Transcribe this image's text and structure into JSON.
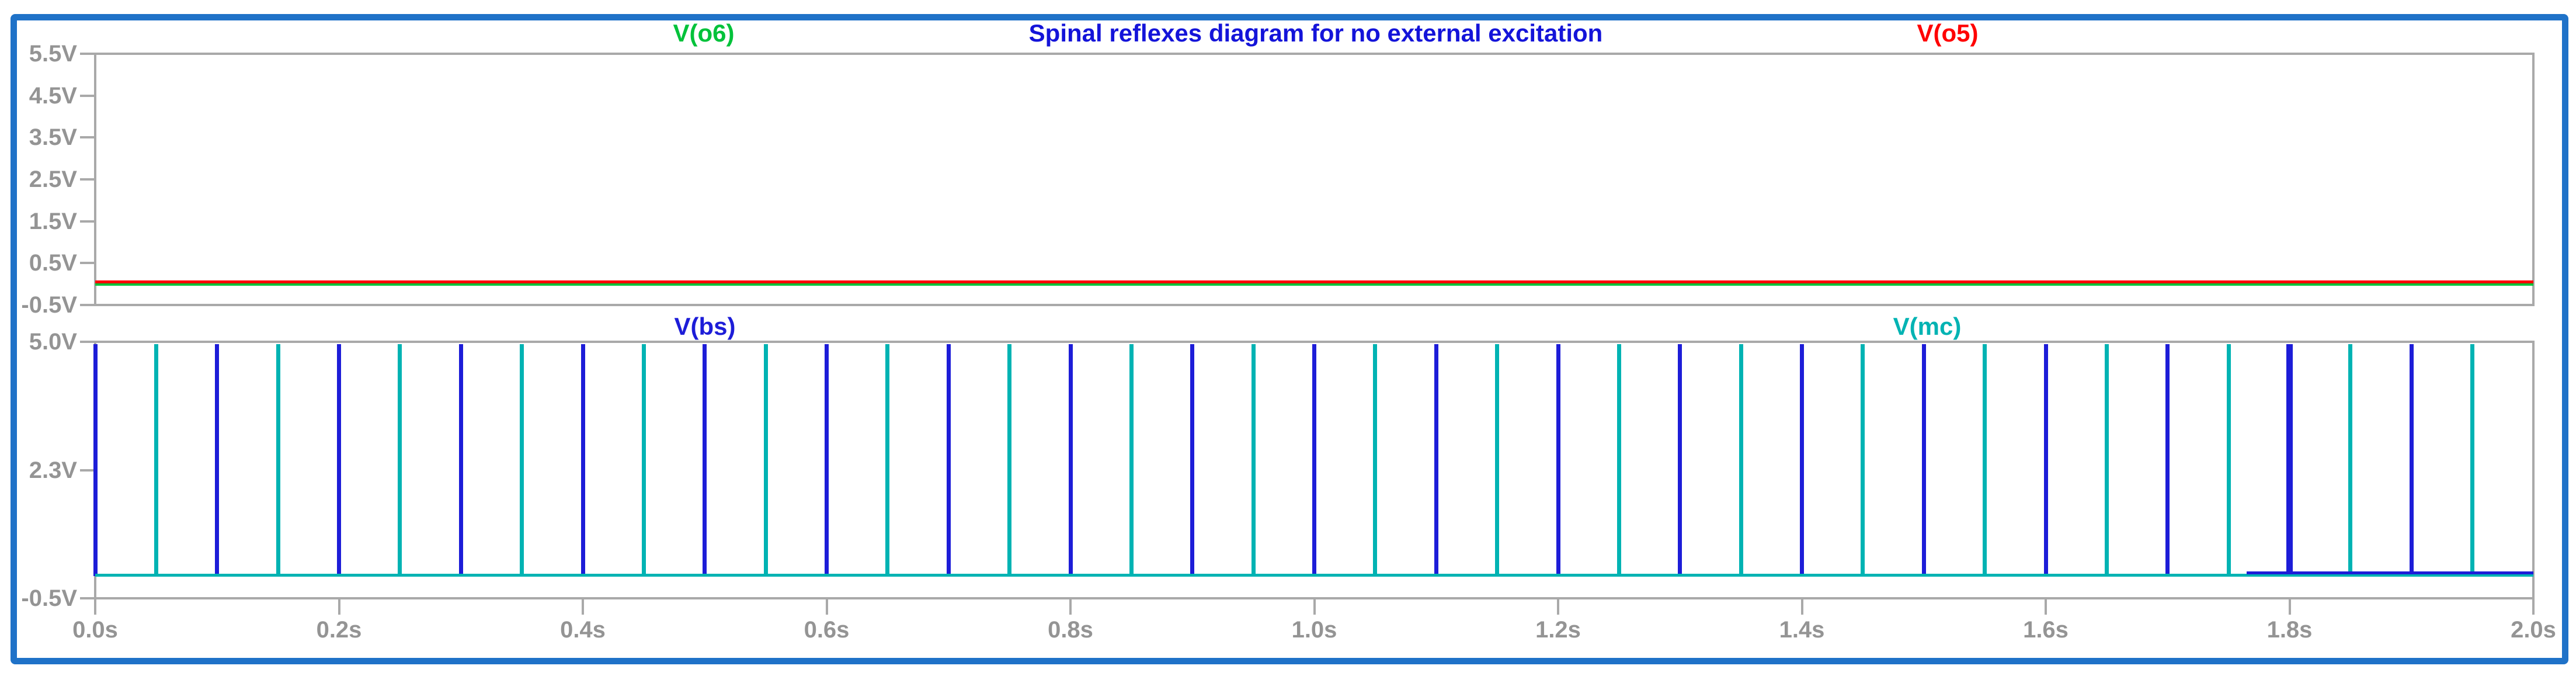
{
  "window": {
    "type": "waveform-plot-viewer",
    "frame_border_color": "#1f72c8",
    "background_color": "#ffffff"
  },
  "axis": {
    "line_color": "#a9a9a9",
    "label_color": "#949494"
  },
  "chart_data": [
    {
      "type": "line",
      "panel": "top",
      "title": "Spinal reflexes diagram for no external excitation",
      "title_color": "#1414d9",
      "grid": false,
      "legend_position": "top",
      "xlim": [
        0,
        2
      ],
      "ylim": [
        -0.5,
        5.5
      ],
      "yticks": [
        {
          "label": "5.5V",
          "v": 5.5
        },
        {
          "label": "4.5V",
          "v": 4.5
        },
        {
          "label": "3.5V",
          "v": 3.5
        },
        {
          "label": "2.5V",
          "v": 2.5
        },
        {
          "label": "1.5V",
          "v": 1.5
        },
        {
          "label": "0.5V",
          "v": 0.5
        },
        {
          "label": "-0.5V",
          "v": -0.5
        }
      ],
      "series": [
        {
          "name": "V(o6)",
          "color": "#00c23a",
          "kind": "flat",
          "value": 0.02
        },
        {
          "name": "V(o5)",
          "color": "#ff0000",
          "kind": "flat",
          "value": 0.05
        }
      ]
    },
    {
      "type": "line",
      "panel": "bottom",
      "grid": false,
      "legend_position": "top",
      "xlim": [
        0,
        2
      ],
      "ylim": [
        -0.5,
        5.0
      ],
      "yticks": [
        {
          "label": "5.0V",
          "v": 5.0
        },
        {
          "label": "2.3V",
          "v": 2.25
        },
        {
          "label": "-0.5V",
          "v": -0.5
        }
      ],
      "xticks": [
        {
          "label": "0.0s",
          "t": 0.0
        },
        {
          "label": "0.2s",
          "t": 0.2
        },
        {
          "label": "0.4s",
          "t": 0.4
        },
        {
          "label": "0.6s",
          "t": 0.6
        },
        {
          "label": "0.8s",
          "t": 0.8
        },
        {
          "label": "1.0s",
          "t": 1.0
        },
        {
          "label": "1.2s",
          "t": 1.2
        },
        {
          "label": "1.4s",
          "t": 1.4
        },
        {
          "label": "1.6s",
          "t": 1.6
        },
        {
          "label": "1.8s",
          "t": 1.8
        },
        {
          "label": "2.0s",
          "t": 2.0
        }
      ],
      "series": [
        {
          "name": "V(bs)",
          "color": "#1d1dd8",
          "kind": "spike-train",
          "peak": 5.0,
          "baseline": 0.05,
          "baseline_visible_range": [
            1.765,
            2.0
          ],
          "thick_spikes": [
            1.8
          ],
          "spike_times": [
            0.0,
            0.1,
            0.2,
            0.3,
            0.4,
            0.5,
            0.6,
            0.7,
            0.8,
            0.9,
            1.0,
            1.1,
            1.2,
            1.3,
            1.4,
            1.5,
            1.6,
            1.7,
            1.8,
            1.9
          ]
        },
        {
          "name": "V(mc)",
          "color": "#00b3b3",
          "kind": "spike-train",
          "peak": 5.0,
          "baseline": 0.0,
          "spike_times": [
            0.05,
            0.15,
            0.25,
            0.35,
            0.45,
            0.55,
            0.65,
            0.75,
            0.85,
            0.95,
            1.05,
            1.15,
            1.25,
            1.35,
            1.45,
            1.55,
            1.65,
            1.75,
            1.85,
            1.95
          ]
        }
      ]
    }
  ]
}
